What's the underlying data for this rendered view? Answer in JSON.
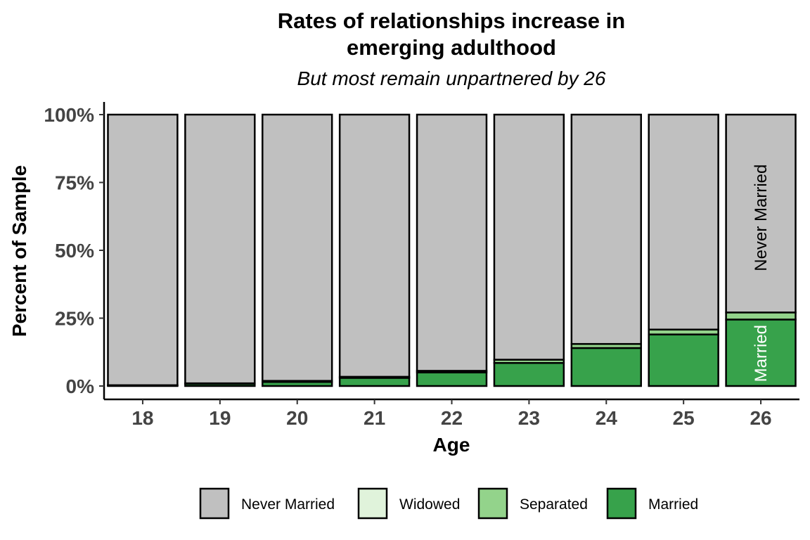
{
  "chart_data": {
    "type": "bar",
    "stacked": true,
    "title": "Rates of relationships increase in emerging adulthood",
    "title_lines": [
      "Rates of relationships increase in",
      "emerging adulthood"
    ],
    "subtitle": "But most remain unpartnered by 26",
    "xlabel": "Age",
    "ylabel": "Percent of Sample",
    "ylim": [
      0,
      100
    ],
    "yticks": [
      "0%",
      "25%",
      "50%",
      "75%",
      "100%"
    ],
    "ytick_values": [
      0,
      25,
      50,
      75,
      100
    ],
    "categories": [
      "18",
      "19",
      "20",
      "21",
      "22",
      "23",
      "24",
      "25",
      "26"
    ],
    "grid": false,
    "legend_position": "bottom",
    "series": [
      {
        "name": "Married",
        "color": "#37A24B",
        "values": [
          0.2,
          0.8,
          1.5,
          3.0,
          5.0,
          8.5,
          14.0,
          19.0,
          24.5
        ]
      },
      {
        "name": "Separated",
        "color": "#93D38B",
        "values": [
          0.1,
          0.2,
          0.4,
          0.4,
          0.6,
          1.2,
          1.5,
          1.8,
          2.6
        ]
      },
      {
        "name": "Widowed",
        "color": "#E0F3DB",
        "values": [
          0.0,
          0.0,
          0.0,
          0.0,
          0.0,
          0.0,
          0.0,
          0.0,
          0.0
        ]
      },
      {
        "name": "Never Married",
        "color": "#C0C0C0",
        "values": [
          99.7,
          99.0,
          98.1,
          96.6,
          94.4,
          90.3,
          84.5,
          79.2,
          72.9
        ]
      }
    ],
    "legend_order": [
      "Never Married",
      "Widowed",
      "Separated",
      "Married"
    ],
    "annotations": [
      {
        "text": "Never Married",
        "category": "26",
        "y": 62,
        "color": "#000000",
        "rotation": -90
      },
      {
        "text": "Married",
        "category": "26",
        "y": 12,
        "color": "#ffffff",
        "rotation": -90
      }
    ]
  }
}
